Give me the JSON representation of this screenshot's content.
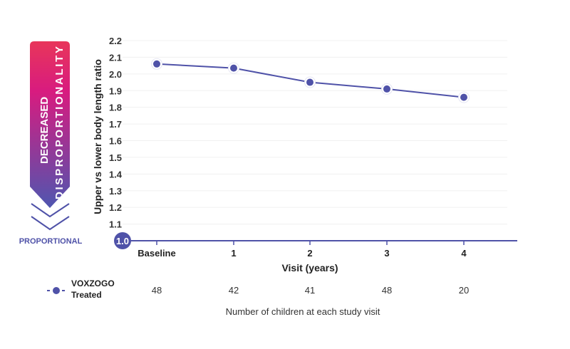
{
  "chart_data": {
    "type": "line",
    "ylabel": "Upper vs lower body length ratio",
    "xlabel": "Visit (years)",
    "ylim": [
      1.0,
      2.2
    ],
    "yticks": [
      "1.0",
      "1.1",
      "1.2",
      "1.3",
      "1.4",
      "1.5",
      "1.6",
      "1.7",
      "1.8",
      "1.9",
      "2.0",
      "2.1",
      "2.2"
    ],
    "categories": [
      "Baseline",
      "1",
      "2",
      "3",
      "4"
    ],
    "series": [
      {
        "name": "VOXZOGO Treated",
        "values": [
          2.06,
          2.035,
          1.95,
          1.91,
          1.86
        ],
        "error": [
          0.01,
          0.015,
          0.02,
          0.015,
          0.02
        ],
        "color": "#4f52a8"
      }
    ],
    "grid": true,
    "legend": {
      "line1": "VOXZOGO",
      "line2": "Treated",
      "placement": "bottom-left"
    },
    "counts": [
      "48",
      "42",
      "41",
      "48",
      "20"
    ],
    "counts_label": "Number of children at each study visit",
    "arrow": {
      "line1": "DECREASED",
      "line2": "DISPROPORTIONALITY",
      "bottom_label": "PROPORTIONAL"
    }
  }
}
